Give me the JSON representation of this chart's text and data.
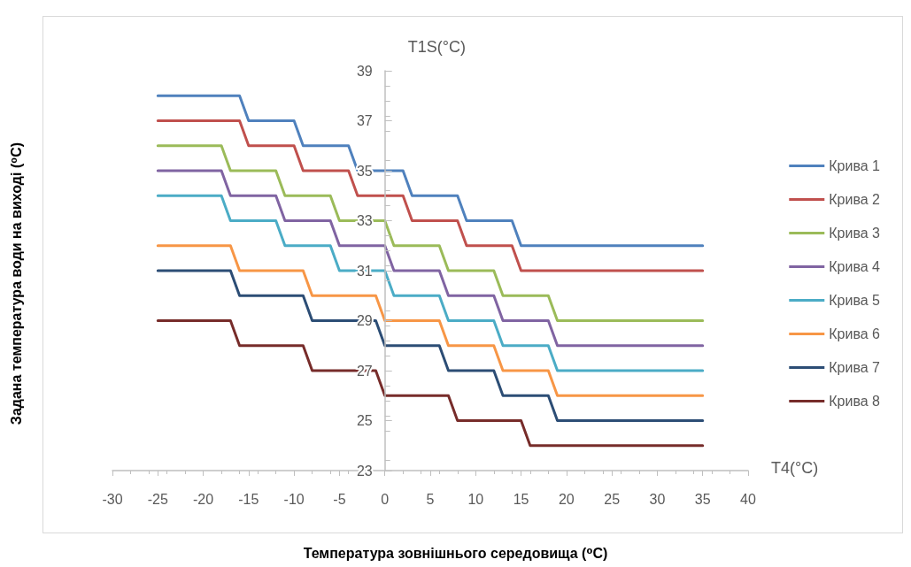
{
  "chart_data": {
    "type": "line",
    "xlabel": "Температура зовнішнього середовища (⁰C)",
    "annotations": [
      "T1S(°C)",
      "T4(°C)",
      "Задана температура води на виході (⁰C)"
    ],
    "xlim": [
      -30,
      40
    ],
    "xticks": [
      -30,
      -25,
      -20,
      -15,
      -10,
      -5,
      0,
      5,
      10,
      15,
      20,
      25,
      30,
      35,
      40
    ],
    "ylim": [
      23,
      39
    ],
    "yticks": [
      23,
      25,
      27,
      29,
      31,
      33,
      35,
      37,
      39
    ],
    "grid": false,
    "legend": "right",
    "marker": "none",
    "line_style": "solid",
    "series": [
      {
        "name": "Крива 1",
        "color": "#4f81bd",
        "x": [
          -25,
          -16,
          -15,
          -10,
          -9,
          -4,
          -3,
          2,
          3,
          8,
          9,
          14,
          15,
          35
        ],
        "values": [
          38,
          38,
          37,
          37,
          36,
          36,
          35,
          35,
          34,
          34,
          33,
          33,
          32,
          32
        ]
      },
      {
        "name": "Крива 2",
        "color": "#c0504d",
        "x": [
          -25,
          -16,
          -15,
          -10,
          -9,
          -4,
          -3,
          2,
          3,
          8,
          9,
          14,
          15,
          35
        ],
        "values": [
          37,
          37,
          36,
          36,
          35,
          35,
          34,
          34,
          33,
          33,
          32,
          32,
          31,
          31
        ]
      },
      {
        "name": "Крива 3",
        "color": "#9bbb59",
        "x": [
          -25,
          -18,
          -17,
          -12,
          -11,
          -6,
          -5,
          0,
          1,
          6,
          7,
          12,
          13,
          18,
          19,
          35
        ],
        "values": [
          36,
          36,
          35,
          35,
          34,
          34,
          33,
          33,
          32,
          32,
          31,
          31,
          30,
          30,
          29,
          29
        ]
      },
      {
        "name": "Крива 4",
        "color": "#8064a2",
        "x": [
          -25,
          -18,
          -17,
          -12,
          -11,
          -6,
          -5,
          0,
          1,
          6,
          7,
          12,
          13,
          18,
          19,
          35
        ],
        "values": [
          35,
          35,
          34,
          34,
          33,
          33,
          32,
          32,
          31,
          31,
          30,
          30,
          29,
          29,
          28,
          28
        ]
      },
      {
        "name": "Крива 5",
        "color": "#4bacc6",
        "x": [
          -25,
          -18,
          -17,
          -12,
          -11,
          -6,
          -5,
          0,
          1,
          6,
          7,
          12,
          13,
          18,
          19,
          35
        ],
        "values": [
          34,
          34,
          33,
          33,
          32,
          32,
          31,
          31,
          30,
          30,
          29,
          29,
          28,
          28,
          27,
          27
        ]
      },
      {
        "name": "Крива 6",
        "color": "#f79646",
        "x": [
          -25,
          -17,
          -16,
          -9,
          -8,
          -1,
          0,
          6,
          7,
          12,
          13,
          18,
          19,
          35
        ],
        "values": [
          32,
          32,
          31,
          31,
          30,
          30,
          29,
          29,
          28,
          28,
          27,
          27,
          26,
          26
        ]
      },
      {
        "name": "Крива 7",
        "color": "#2c4d75",
        "x": [
          -25,
          -17,
          -16,
          -9,
          -8,
          -1,
          0,
          6,
          7,
          12,
          13,
          18,
          19,
          35
        ],
        "values": [
          31,
          31,
          30,
          30,
          29,
          29,
          28,
          28,
          27,
          27,
          26,
          26,
          25,
          25
        ]
      },
      {
        "name": "Крива 8",
        "color": "#772c2a",
        "x": [
          -25,
          -17,
          -16,
          -9,
          -8,
          -1,
          0,
          7,
          8,
          15,
          16,
          35
        ],
        "values": [
          29,
          29,
          28,
          28,
          27,
          27,
          26,
          26,
          25,
          25,
          24,
          24
        ]
      }
    ]
  }
}
